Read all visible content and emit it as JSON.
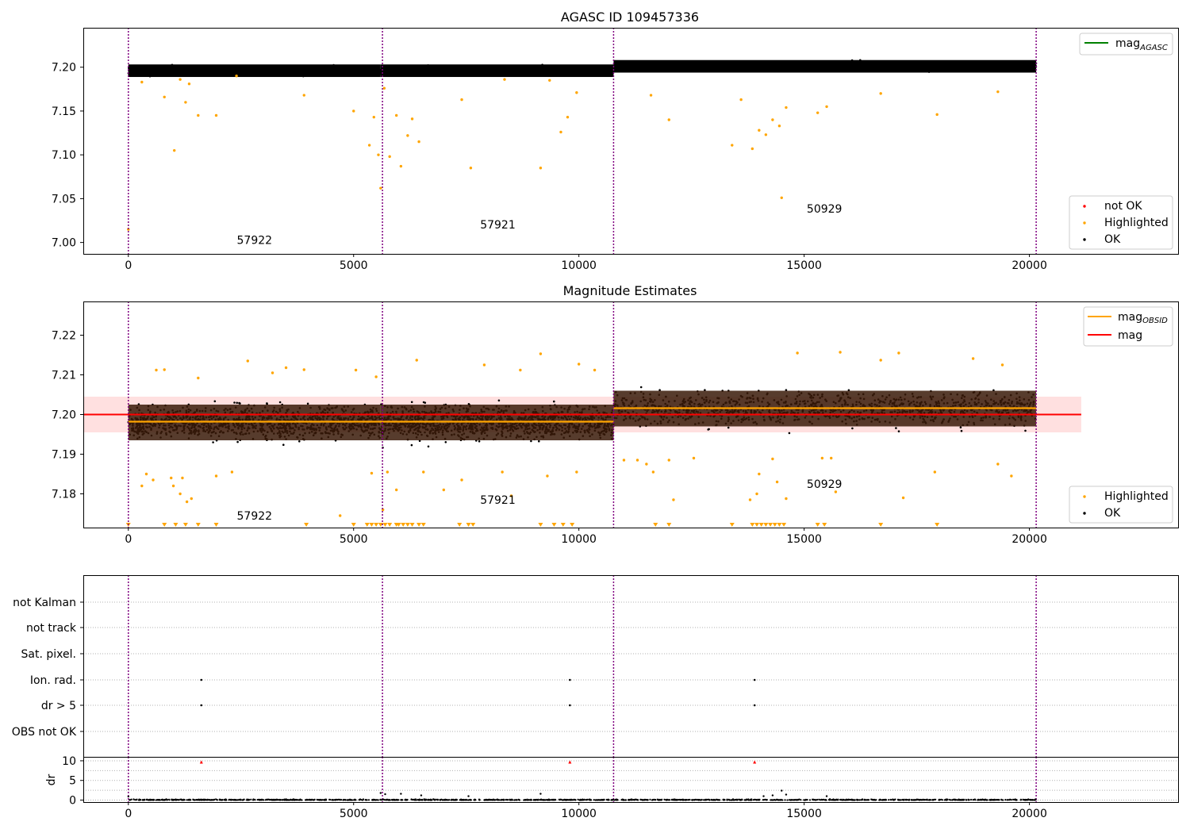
{
  "chart_data": [
    {
      "type": "scatter",
      "title": "AGASC ID 109457336",
      "xlim": [
        -1000,
        23300
      ],
      "ylim": [
        6.987,
        7.245
      ],
      "xticks": [
        0,
        5000,
        10000,
        15000,
        20000
      ],
      "xtick_labels": [
        "0",
        "5000",
        "10000",
        "15000",
        "20000"
      ],
      "yticks": [
        7.0,
        7.05,
        7.1,
        7.15,
        7.2
      ],
      "ytick_labels": [
        "7.00",
        "7.05",
        "7.10",
        "7.15",
        "7.20"
      ],
      "legend_lines": [
        {
          "name": "mag",
          "sub": "AGASC",
          "color": "#008000"
        }
      ],
      "legend_points": [
        {
          "name": "not OK",
          "color": "#ff0000"
        },
        {
          "name": "Highlighted",
          "color": "#ffa500"
        },
        {
          "name": "OK",
          "color": "#000000"
        }
      ],
      "obs_segments": [
        {
          "x0": 0,
          "x1": 5600,
          "center": 7.196,
          "spread": 0.0055
        },
        {
          "x0": 5600,
          "x1": 10770,
          "center": 7.196,
          "spread": 0.0055
        },
        {
          "x0": 10770,
          "x1": 20150,
          "center": 7.201,
          "spread": 0.0055
        }
      ],
      "highlighted_points": [
        [
          0,
          7.015
        ],
        [
          300,
          7.183
        ],
        [
          800,
          7.166
        ],
        [
          1020,
          7.105
        ],
        [
          1150,
          7.186
        ],
        [
          1270,
          7.16
        ],
        [
          1350,
          7.181
        ],
        [
          1550,
          7.145
        ],
        [
          1950,
          7.145
        ],
        [
          2400,
          7.19
        ],
        [
          3900,
          7.168
        ],
        [
          5000,
          7.15
        ],
        [
          5350,
          7.111
        ],
        [
          5450,
          7.143
        ],
        [
          5550,
          7.1
        ],
        [
          5600,
          7.062
        ],
        [
          5680,
          7.176
        ],
        [
          5800,
          7.098
        ],
        [
          5950,
          7.145
        ],
        [
          6050,
          7.087
        ],
        [
          6200,
          7.122
        ],
        [
          6300,
          7.141
        ],
        [
          6450,
          7.115
        ],
        [
          7400,
          7.163
        ],
        [
          7600,
          7.085
        ],
        [
          8350,
          7.186
        ],
        [
          9150,
          7.085
        ],
        [
          9350,
          7.185
        ],
        [
          9600,
          7.126
        ],
        [
          9750,
          7.143
        ],
        [
          9950,
          7.171
        ],
        [
          11600,
          7.168
        ],
        [
          12000,
          7.14
        ],
        [
          13400,
          7.111
        ],
        [
          13600,
          7.163
        ],
        [
          13850,
          7.107
        ],
        [
          14000,
          7.128
        ],
        [
          14150,
          7.123
        ],
        [
          14300,
          7.14
        ],
        [
          14450,
          7.133
        ],
        [
          14500,
          7.051
        ],
        [
          14600,
          7.154
        ],
        [
          15300,
          7.148
        ],
        [
          15500,
          7.155
        ],
        [
          16700,
          7.17
        ],
        [
          17950,
          7.146
        ],
        [
          19300,
          7.172
        ]
      ],
      "markers": [
        {
          "x": 0,
          "label": ""
        },
        {
          "x": 5640,
          "label": "57922"
        },
        {
          "x": 10770,
          "label": "57921"
        },
        {
          "x": 20150,
          "label": "50929"
        }
      ],
      "obs_labels": [
        {
          "x": 2800,
          "y": 6.9985,
          "text": "57922"
        },
        {
          "x": 8200,
          "y": 7.016,
          "text": "57921"
        },
        {
          "x": 15450,
          "y": 7.034,
          "text": "50929"
        }
      ]
    },
    {
      "type": "scatter",
      "title": "Magnitude Estimates",
      "xlim": [
        -1000,
        23300
      ],
      "ylim": [
        7.1715,
        7.2285
      ],
      "xticks": [
        0,
        5000,
        10000,
        15000,
        20000
      ],
      "xtick_labels": [
        "0",
        "5000",
        "10000",
        "15000",
        "20000"
      ],
      "yticks": [
        7.18,
        7.19,
        7.2,
        7.21,
        7.22
      ],
      "ytick_labels": [
        "7.18",
        "7.19",
        "7.20",
        "7.21",
        "7.22"
      ],
      "legend_lines": [
        {
          "name": "mag",
          "sub": "OBSID",
          "color": "#ffa500"
        },
        {
          "name": "mag",
          "sub": "",
          "color": "#ff0000"
        }
      ],
      "legend_points": [
        {
          "name": "Highlighted",
          "color": "#ffa500"
        },
        {
          "name": "OK",
          "color": "#000000"
        }
      ],
      "mag_line": 7.2,
      "mag_band": [
        7.1955,
        7.2045
      ],
      "band_x": [
        -1000,
        21150
      ],
      "mag_obsid": [
        {
          "x0": 0,
          "x1": 10770,
          "y": 7.1982
        },
        {
          "x0": 10770,
          "x1": 20150,
          "y": 7.2016
        }
      ],
      "obs_segments": [
        {
          "x0": 0,
          "x1": 5600,
          "center": 7.198,
          "spread": 0.0048
        },
        {
          "x0": 5600,
          "x1": 10770,
          "center": 7.198,
          "spread": 0.0048
        },
        {
          "x0": 10770,
          "x1": 20150,
          "center": 7.2015,
          "spread": 0.0048
        }
      ],
      "highlighted_points": [
        [
          300,
          7.182
        ],
        [
          400,
          7.185
        ],
        [
          550,
          7.1835
        ],
        [
          620,
          7.2112
        ],
        [
          800,
          7.2113
        ],
        [
          950,
          7.184
        ],
        [
          1000,
          7.182
        ],
        [
          1150,
          7.18
        ],
        [
          1200,
          7.184
        ],
        [
          1300,
          7.178
        ],
        [
          1400,
          7.1788
        ],
        [
          1550,
          7.2092
        ],
        [
          1950,
          7.1845
        ],
        [
          2300,
          7.1855
        ],
        [
          2650,
          7.2135
        ],
        [
          3200,
          7.2105
        ],
        [
          3500,
          7.2118
        ],
        [
          3900,
          7.2113
        ],
        [
          4700,
          7.1745
        ],
        [
          5050,
          7.2112
        ],
        [
          5400,
          7.1852
        ],
        [
          5500,
          7.2095
        ],
        [
          5650,
          7.176
        ],
        [
          5750,
          7.1855
        ],
        [
          5950,
          7.181
        ],
        [
          6400,
          7.2137
        ],
        [
          6550,
          7.1855
        ],
        [
          7000,
          7.181
        ],
        [
          7400,
          7.1835
        ],
        [
          7900,
          7.2125
        ],
        [
          8300,
          7.1855
        ],
        [
          8500,
          7.1795
        ],
        [
          8700,
          7.2112
        ],
        [
          9150,
          7.2153
        ],
        [
          9300,
          7.1845
        ],
        [
          9950,
          7.1855
        ],
        [
          10000,
          7.2127
        ],
        [
          10350,
          7.2112
        ],
        [
          11000,
          7.1885
        ],
        [
          11300,
          7.1885
        ],
        [
          11500,
          7.1875
        ],
        [
          11650,
          7.1855
        ],
        [
          12000,
          7.1885
        ],
        [
          12100,
          7.1785
        ],
        [
          12550,
          7.189
        ],
        [
          13800,
          7.1785
        ],
        [
          13950,
          7.18
        ],
        [
          14000,
          7.185
        ],
        [
          14300,
          7.1888
        ],
        [
          14400,
          7.183
        ],
        [
          14600,
          7.1788
        ],
        [
          14850,
          7.2155
        ],
        [
          15400,
          7.189
        ],
        [
          15600,
          7.189
        ],
        [
          15700,
          7.1805
        ],
        [
          15800,
          7.2157
        ],
        [
          16700,
          7.2137
        ],
        [
          17100,
          7.2155
        ],
        [
          17200,
          7.179
        ],
        [
          17900,
          7.1855
        ],
        [
          18750,
          7.2141
        ],
        [
          19300,
          7.1875
        ],
        [
          19400,
          7.2125
        ],
        [
          19600,
          7.1845
        ]
      ],
      "floor_points": [
        0,
        800,
        1050,
        1270,
        1550,
        1950,
        3950,
        5000,
        5300,
        5400,
        5500,
        5600,
        5700,
        5800,
        5950,
        6000,
        6100,
        6200,
        6300,
        6450,
        6550,
        7350,
        7550,
        7650,
        9150,
        9450,
        9650,
        9850,
        11700,
        12000,
        13400,
        13850,
        13950,
        14050,
        14150,
        14250,
        14350,
        14450,
        14550,
        15300,
        15450,
        16700,
        17950
      ],
      "markers": [
        {
          "x": 0,
          "label": ""
        },
        {
          "x": 5640,
          "label": "57922"
        },
        {
          "x": 10770,
          "label": "57921"
        },
        {
          "x": 20150,
          "label": "50929"
        }
      ],
      "obs_labels": [
        {
          "x": 2800,
          "y": 7.1735,
          "text": "57922"
        },
        {
          "x": 8200,
          "y": 7.1775,
          "text": "57921"
        },
        {
          "x": 15450,
          "y": 7.1815,
          "text": "50929"
        }
      ]
    },
    {
      "type": "scatter",
      "title": "",
      "xlim": [
        -1000,
        23300
      ],
      "flag_labels": [
        "not Kalman",
        "not track",
        "Sat. pixel.",
        "Ion. rad.",
        "dr > 5",
        "OBS not OK"
      ],
      "flag_points": [
        {
          "x": 1620,
          "flag": "Ion. rad."
        },
        {
          "x": 9800,
          "flag": "Ion. rad."
        },
        {
          "x": 13900,
          "flag": "Ion. rad."
        },
        {
          "x": 1620,
          "flag": "dr > 5"
        },
        {
          "x": 9800,
          "flag": "dr > 5"
        },
        {
          "x": 13900,
          "flag": "dr > 5"
        }
      ],
      "markers": [
        {
          "x": 0,
          "label": ""
        },
        {
          "x": 5640,
          "label": ""
        },
        {
          "x": 10770,
          "label": ""
        },
        {
          "x": 20150,
          "label": ""
        }
      ]
    },
    {
      "type": "scatter",
      "title": "",
      "ylabel": "dr",
      "xlim": [
        -1000,
        23300
      ],
      "ylim": [
        -0.5,
        11
      ],
      "xticks": [
        0,
        5000,
        10000,
        15000,
        20000
      ],
      "xtick_labels": [
        "0",
        "5000",
        "10000",
        "15000",
        "20000"
      ],
      "yticks": [
        0,
        5,
        10
      ],
      "ytick_labels": [
        "0",
        "5",
        "10"
      ],
      "clip_points": [
        1620,
        9800,
        13900
      ],
      "spikes": [
        [
          5600,
          1.8
        ],
        [
          5700,
          1.5
        ],
        [
          6050,
          1.6
        ],
        [
          6500,
          1.2
        ],
        [
          7550,
          1.0
        ],
        [
          9150,
          1.6
        ],
        [
          14100,
          1.0
        ],
        [
          14300,
          1.2
        ],
        [
          14500,
          2.4
        ],
        [
          14600,
          1.4
        ],
        [
          15500,
          1.0
        ],
        [
          0,
          0.9
        ]
      ],
      "markers": [
        {
          "x": 0,
          "label": ""
        },
        {
          "x": 5640,
          "label": ""
        },
        {
          "x": 10770,
          "label": ""
        },
        {
          "x": 20150,
          "label": ""
        }
      ]
    }
  ]
}
